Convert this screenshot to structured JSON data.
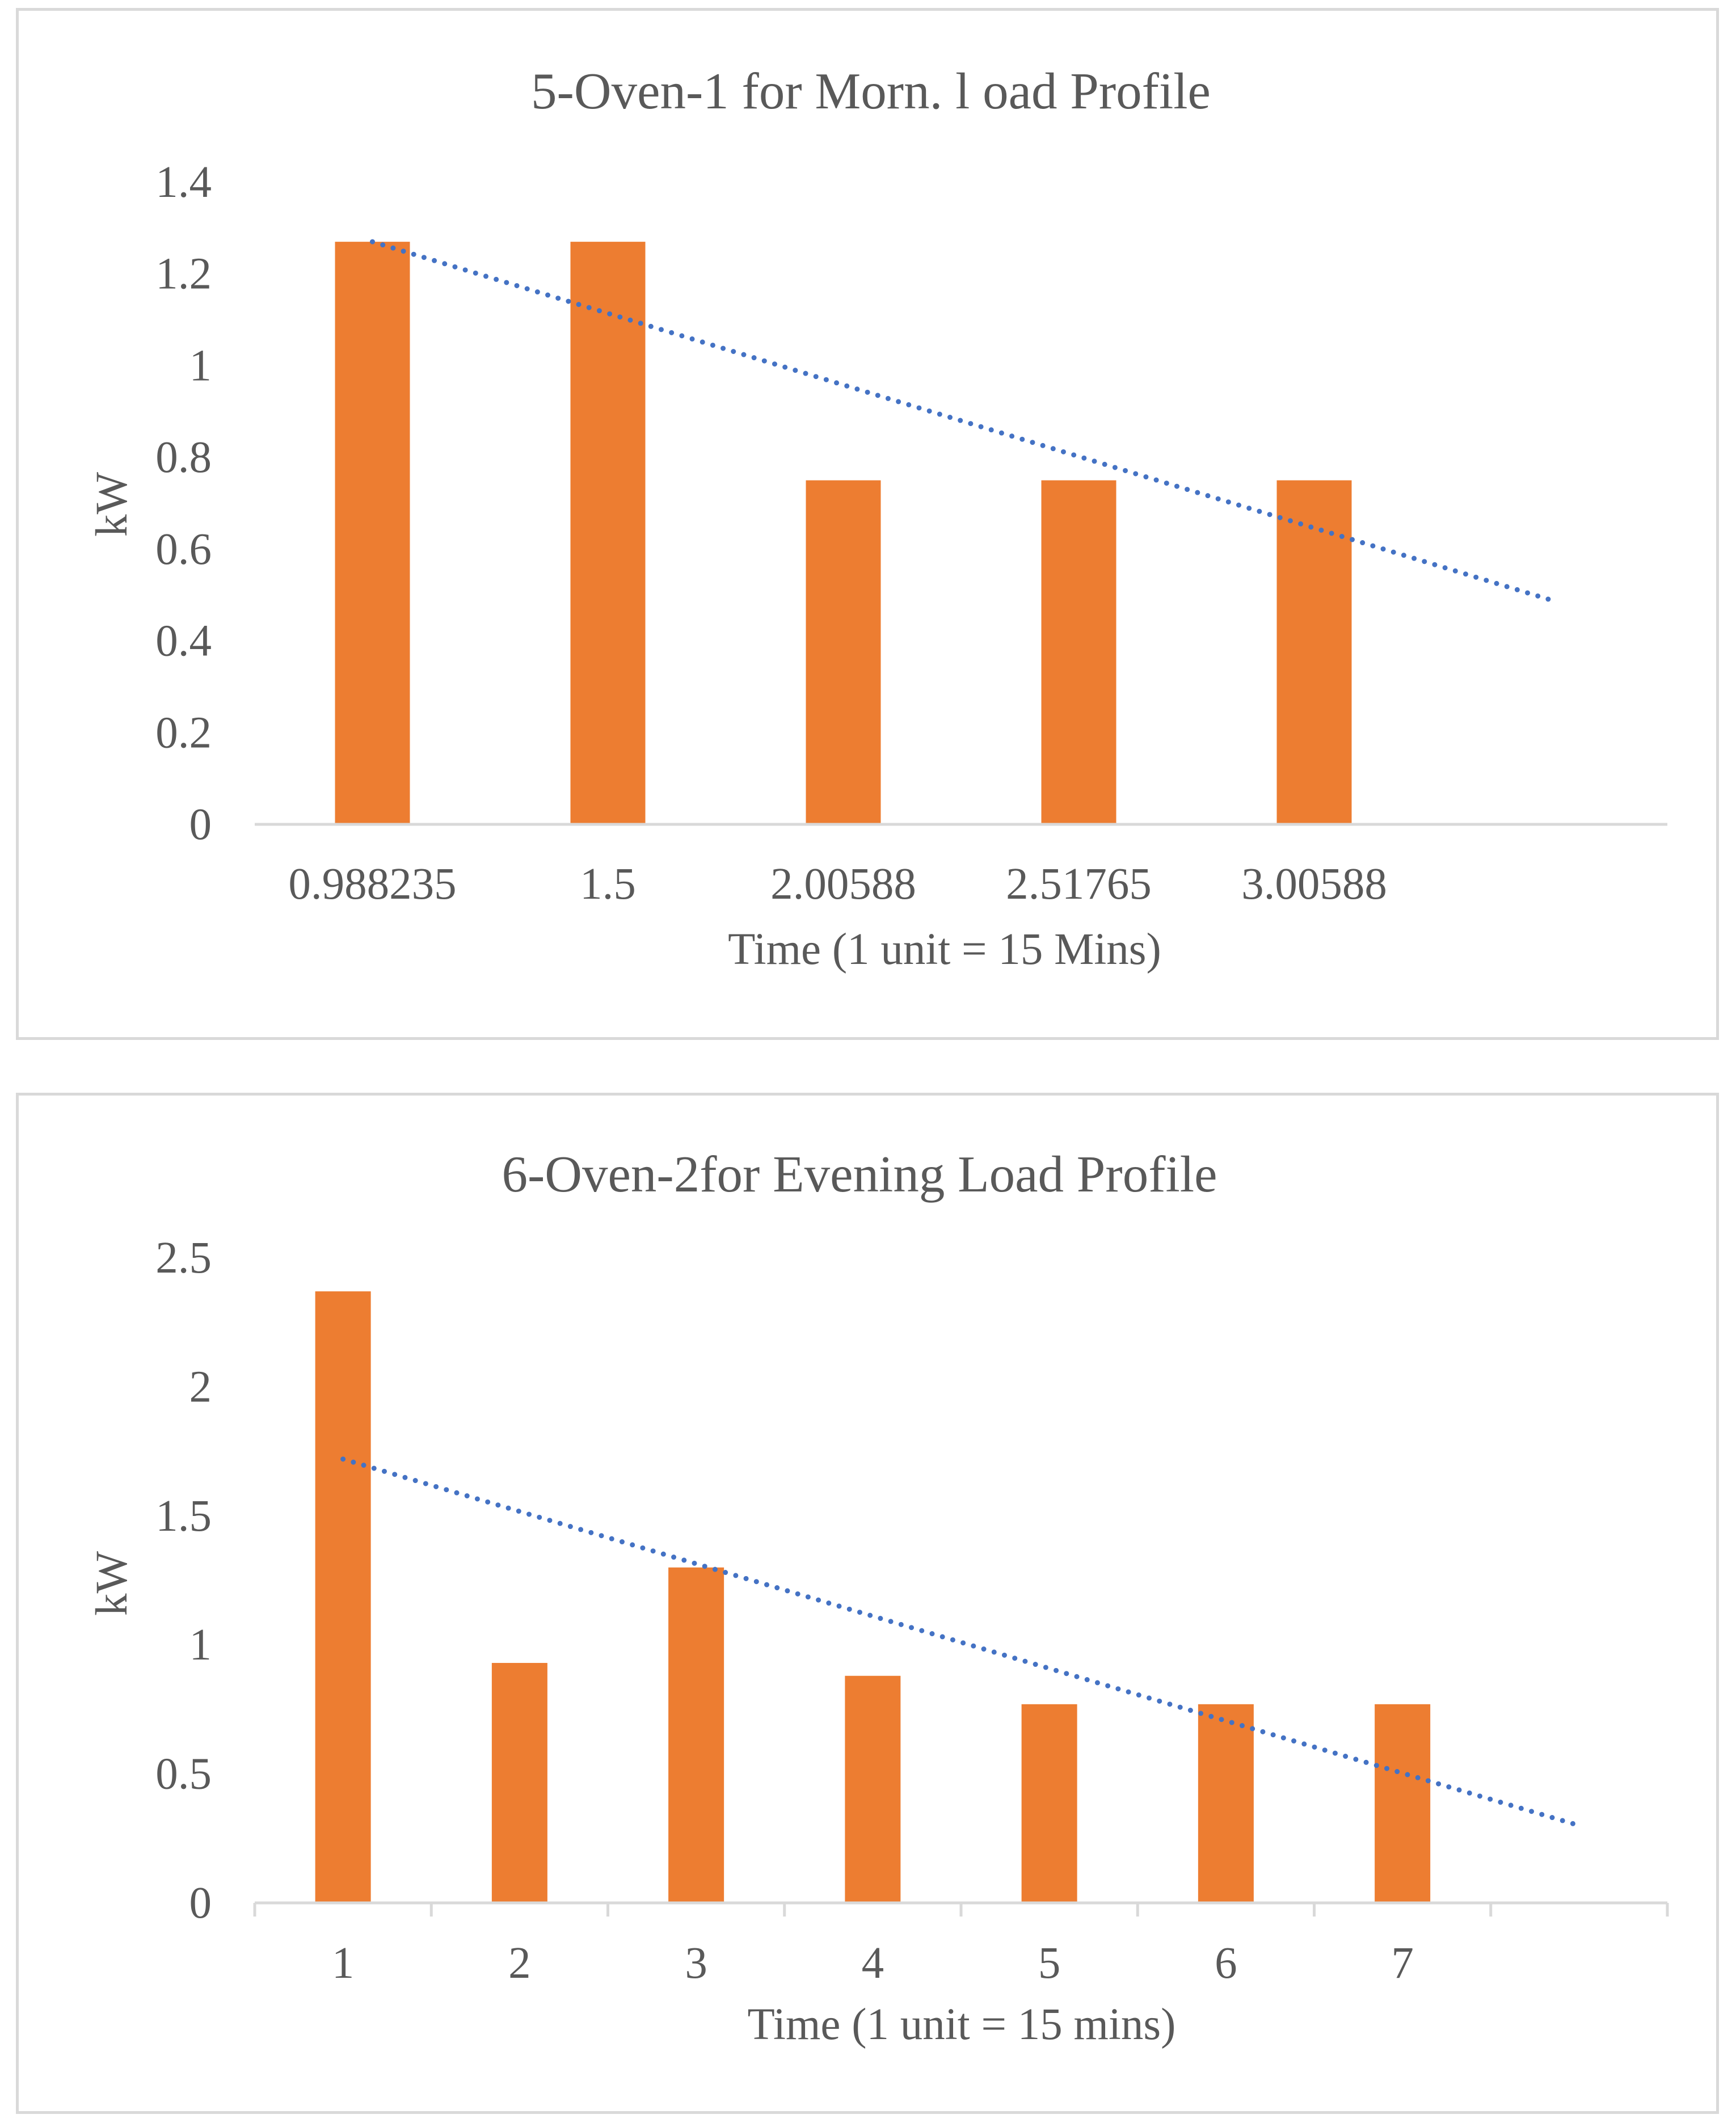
{
  "chart_data": [
    {
      "type": "bar",
      "title": "5-Oven-1 for Morn. l oad Profile",
      "xlabel": "Time (1 unit = 15 Mins)",
      "ylabel": "kW",
      "categories": [
        "0.988235",
        "1.5",
        "2.00588",
        "2.51765",
        "3.00588"
      ],
      "values": [
        1.27,
        1.27,
        0.75,
        0.75,
        0.75
      ],
      "ylim": [
        0,
        1.4
      ],
      "yticks": [
        "0",
        "0.2",
        "0.4",
        "0.6",
        "0.8",
        "1",
        "1.2",
        "1.4"
      ],
      "trendline": {
        "type": "linear",
        "start": 1.27,
        "end": 0.49
      },
      "grid": false,
      "bar_color": "#ed7d31",
      "trend_color": "#4472c4"
    },
    {
      "type": "bar",
      "title": "6-Oven-2for Evening Load Profile",
      "xlabel": "Time (1 unit = 15 mins)",
      "ylabel": "kW",
      "categories": [
        "1",
        "2",
        "3",
        "4",
        "5",
        "6",
        "7"
      ],
      "values": [
        2.37,
        0.93,
        1.3,
        0.88,
        0.77,
        0.77,
        0.77
      ],
      "ylim": [
        0,
        2.5
      ],
      "yticks": [
        "0",
        "0.5",
        "1",
        "1.5",
        "2",
        "2.5"
      ],
      "trendline": {
        "type": "linear",
        "start": 1.72,
        "end": 0.3
      },
      "grid": false,
      "bar_color": "#ed7d31",
      "trend_color": "#4472c4"
    }
  ]
}
